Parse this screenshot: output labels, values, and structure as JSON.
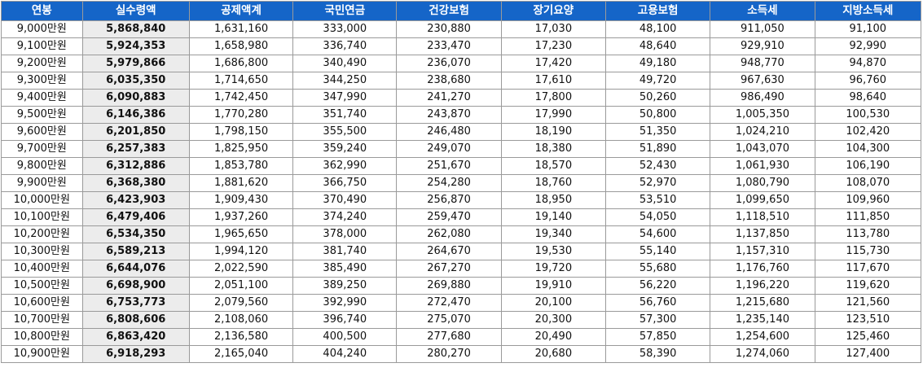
{
  "table": {
    "headers": [
      "연봉",
      "실수령액",
      "공제액계",
      "국민연금",
      "건강보험",
      "장기요양",
      "고용보험",
      "소득세",
      "지방소득세"
    ],
    "rows": [
      [
        "9,000만원",
        "5,868,840",
        "1,631,160",
        "333,000",
        "230,880",
        "17,030",
        "48,100",
        "911,050",
        "91,100"
      ],
      [
        "9,100만원",
        "5,924,353",
        "1,658,980",
        "336,740",
        "233,470",
        "17,230",
        "48,640",
        "929,910",
        "92,990"
      ],
      [
        "9,200만원",
        "5,979,866",
        "1,686,800",
        "340,490",
        "236,070",
        "17,420",
        "49,180",
        "948,770",
        "94,870"
      ],
      [
        "9,300만원",
        "6,035,350",
        "1,714,650",
        "344,250",
        "238,680",
        "17,610",
        "49,720",
        "967,630",
        "96,760"
      ],
      [
        "9,400만원",
        "6,090,883",
        "1,742,450",
        "347,990",
        "241,270",
        "17,800",
        "50,260",
        "986,490",
        "98,640"
      ],
      [
        "9,500만원",
        "6,146,386",
        "1,770,280",
        "351,740",
        "243,870",
        "17,990",
        "50,800",
        "1,005,350",
        "100,530"
      ],
      [
        "9,600만원",
        "6,201,850",
        "1,798,150",
        "355,500",
        "246,480",
        "18,190",
        "51,350",
        "1,024,210",
        "102,420"
      ],
      [
        "9,700만원",
        "6,257,383",
        "1,825,950",
        "359,240",
        "249,070",
        "18,380",
        "51,890",
        "1,043,070",
        "104,300"
      ],
      [
        "9,800만원",
        "6,312,886",
        "1,853,780",
        "362,990",
        "251,670",
        "18,570",
        "52,430",
        "1,061,930",
        "106,190"
      ],
      [
        "9,900만원",
        "6,368,380",
        "1,881,620",
        "366,750",
        "254,280",
        "18,760",
        "52,970",
        "1,080,790",
        "108,070"
      ],
      [
        "10,000만원",
        "6,423,903",
        "1,909,430",
        "370,490",
        "256,870",
        "18,950",
        "53,510",
        "1,099,650",
        "109,960"
      ],
      [
        "10,100만원",
        "6,479,406",
        "1,937,260",
        "374,240",
        "259,470",
        "19,140",
        "54,050",
        "1,118,510",
        "111,850"
      ],
      [
        "10,200만원",
        "6,534,350",
        "1,965,650",
        "378,000",
        "262,080",
        "19,340",
        "54,600",
        "1,137,850",
        "113,780"
      ],
      [
        "10,300만원",
        "6,589,213",
        "1,994,120",
        "381,740",
        "264,670",
        "19,530",
        "55,140",
        "1,157,310",
        "115,730"
      ],
      [
        "10,400만원",
        "6,644,076",
        "2,022,590",
        "385,490",
        "267,270",
        "19,720",
        "55,680",
        "1,176,760",
        "117,670"
      ],
      [
        "10,500만원",
        "6,698,900",
        "2,051,100",
        "389,250",
        "269,880",
        "19,910",
        "56,220",
        "1,196,220",
        "119,620"
      ],
      [
        "10,600만원",
        "6,753,773",
        "2,079,560",
        "392,990",
        "272,470",
        "20,100",
        "56,760",
        "1,215,680",
        "121,560"
      ],
      [
        "10,700만원",
        "6,808,606",
        "2,108,060",
        "396,740",
        "275,070",
        "20,300",
        "57,300",
        "1,235,140",
        "123,510"
      ],
      [
        "10,800만원",
        "6,863,420",
        "2,136,580",
        "400,500",
        "277,680",
        "20,490",
        "57,850",
        "1,254,600",
        "125,460"
      ],
      [
        "10,900만원",
        "6,918,293",
        "2,165,040",
        "404,240",
        "280,270",
        "20,680",
        "58,390",
        "1,274,060",
        "127,400"
      ]
    ]
  },
  "colors": {
    "header_bg": "#1565c8",
    "header_text": "#ffffff",
    "net_pay_bg": "#ececec",
    "border": "#9a9a9a"
  }
}
